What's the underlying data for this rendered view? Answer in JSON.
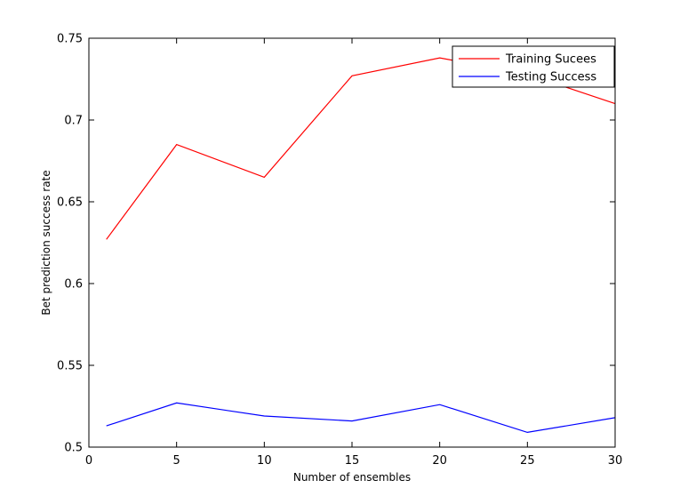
{
  "chart_data": {
    "type": "line",
    "title": "",
    "xlabel": "Number of ensembles",
    "ylabel": "Bet prediction success rate",
    "xlim": [
      0,
      30
    ],
    "ylim": [
      0.5,
      0.75
    ],
    "xticks": [
      0,
      5,
      10,
      15,
      20,
      25,
      30
    ],
    "xtick_labels": [
      "0",
      "5",
      "10",
      "15",
      "20",
      "25",
      "30"
    ],
    "yticks": [
      0.5,
      0.55,
      0.6,
      0.65,
      0.7,
      0.75
    ],
    "ytick_labels": [
      "0.5",
      "0.55",
      "0.6",
      "0.65",
      "0.7",
      "0.75"
    ],
    "grid": false,
    "legend_position": "top-right",
    "x": [
      1,
      5,
      10,
      15,
      20,
      25,
      30
    ],
    "series": [
      {
        "name": "Training Sucees",
        "color": "#ff0000",
        "values": [
          0.627,
          0.685,
          0.665,
          0.727,
          0.738,
          0.728,
          0.71
        ]
      },
      {
        "name": "Testing Success",
        "color": "#0000ff",
        "values": [
          0.513,
          0.527,
          0.519,
          0.516,
          0.526,
          0.509,
          0.518
        ]
      }
    ]
  }
}
